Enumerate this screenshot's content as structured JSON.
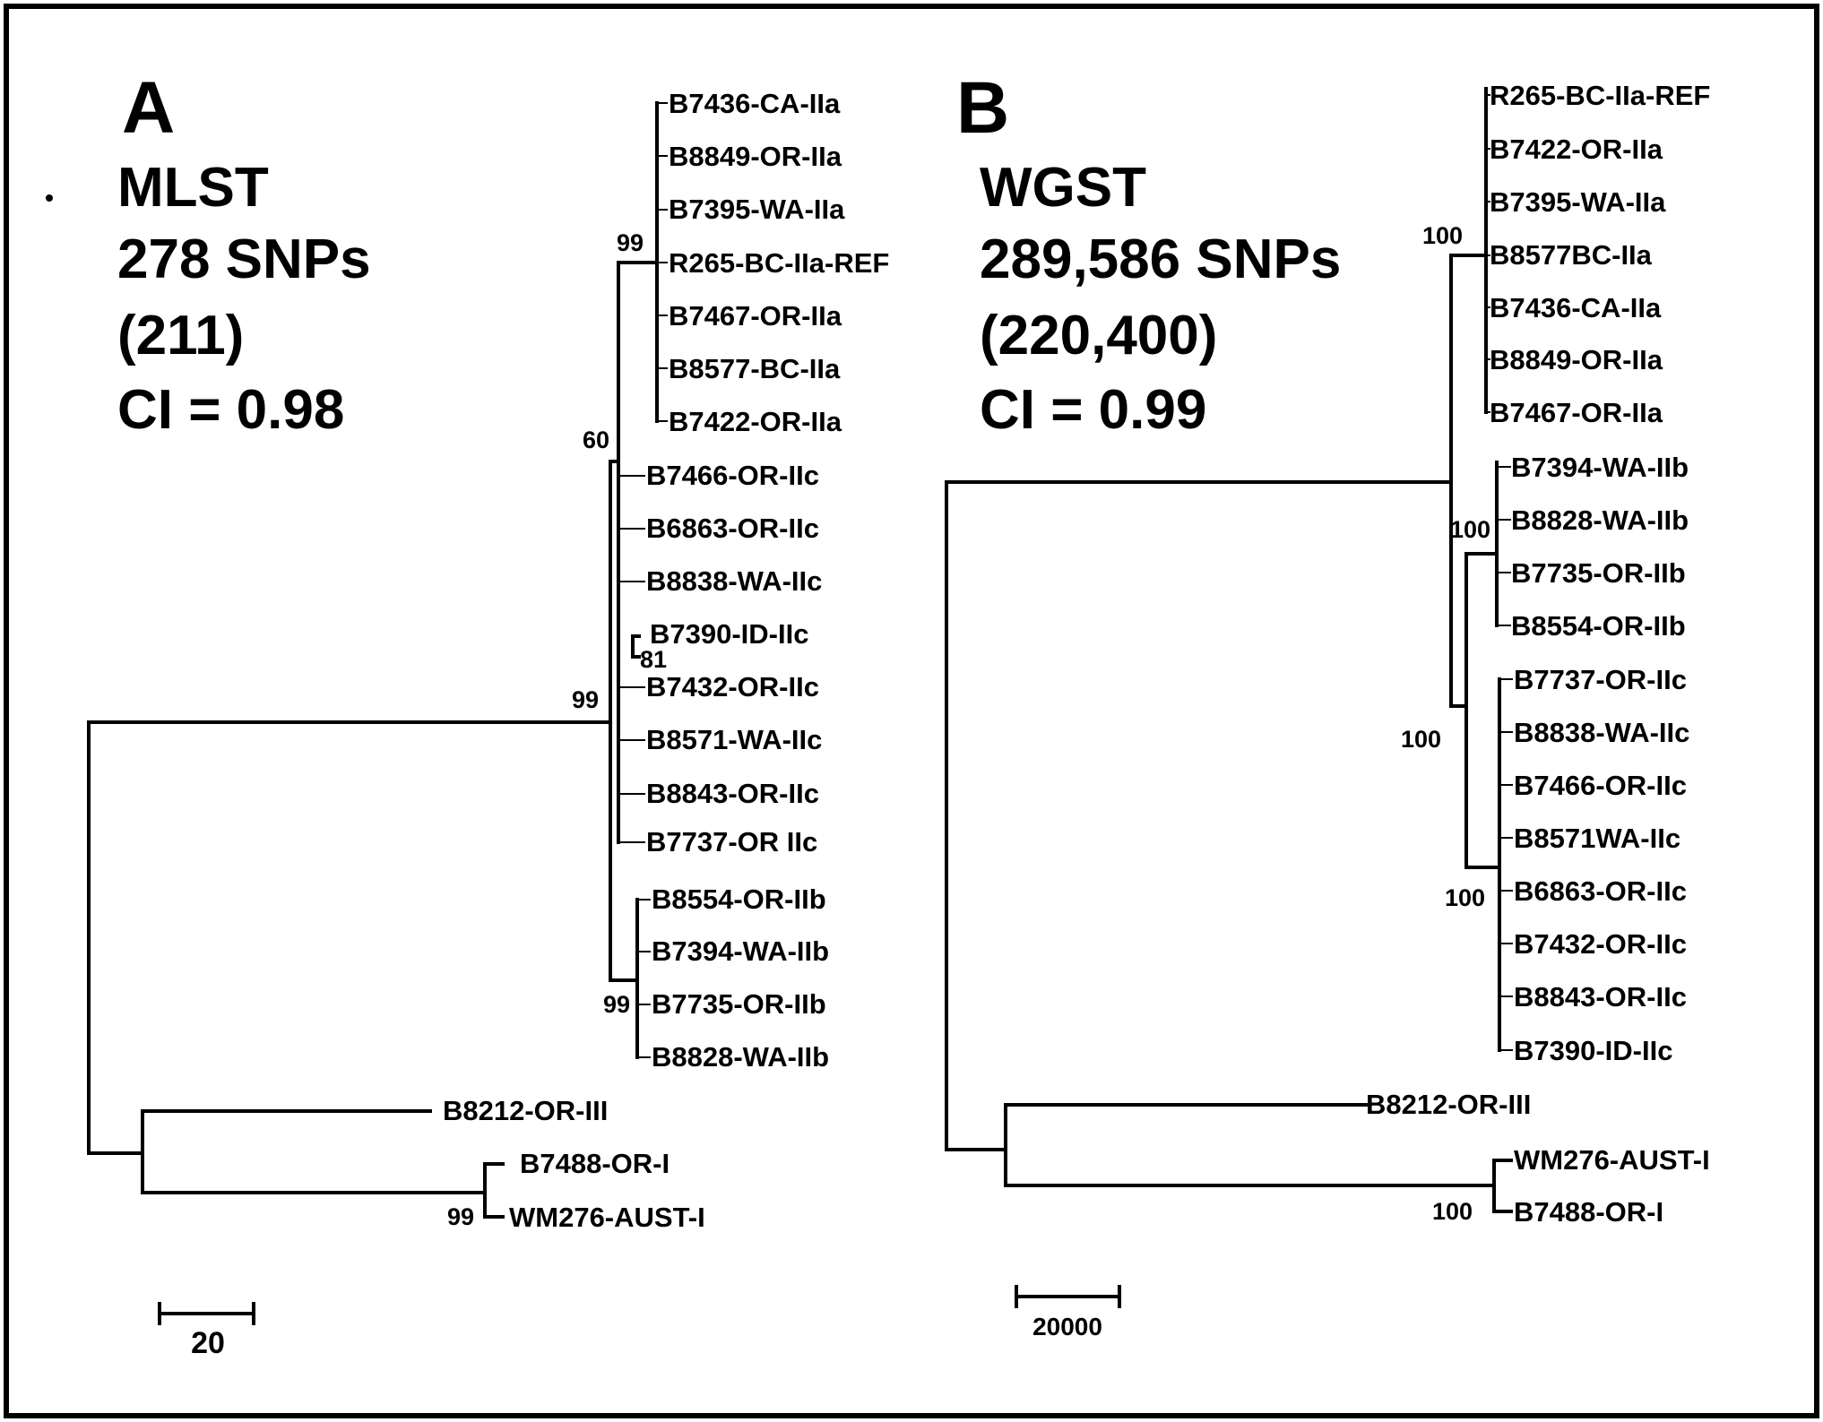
{
  "panels": {
    "A": {
      "letter": "A",
      "method": "MLST",
      "snps": "278 SNPs",
      "informative": "(211)",
      "ci": "CI = 0.98",
      "scale_label": "20",
      "leaves": [
        "B7436-CA-IIa",
        "B8849-OR-IIa",
        "B7395-WA-IIa",
        "R265-BC-IIa-REF",
        "B7467-OR-IIa",
        "B8577-BC-IIa",
        "B7422-OR-IIa",
        "B7466-OR-IIc",
        "B6863-OR-IIc",
        "B8838-WA-IIc",
        "B7390-ID-IIc",
        "B7432-OR-IIc",
        "B8571-WA-IIc",
        "B8843-OR-IIc",
        "B7737-OR IIc",
        "B8554-OR-IIb",
        "B7394-WA-IIb",
        "B7735-OR-IIb",
        "B8828-WA-IIb",
        "B8212-OR-III",
        "B7488-OR-I",
        "WM276-AUST-I"
      ],
      "bootstrap": [
        "99",
        "60",
        "81",
        "99",
        "99",
        "99"
      ]
    },
    "B": {
      "letter": "B",
      "method": "WGST",
      "snps": "289,586 SNPs",
      "informative": "(220,400)",
      "ci": "CI = 0.99",
      "scale_label": "20000",
      "leaves": [
        "R265-BC-IIa-REF",
        "B7422-OR-IIa",
        "B7395-WA-IIa",
        "B8577BC-IIa",
        "B7436-CA-IIa",
        "B8849-OR-IIa",
        "B7467-OR-IIa",
        "B7394-WA-IIb",
        "B8828-WA-IIb",
        "B7735-OR-IIb",
        "B8554-OR-IIb",
        "B7737-OR-IIc",
        "B8838-WA-IIc",
        "B7466-OR-IIc",
        "B8571WA-IIc",
        "B6863-OR-IIc",
        "B7432-OR-IIc",
        "B8843-OR-IIc",
        "B7390-ID-IIc",
        "B8212-OR-III",
        "WM276-AUST-I",
        "B7488-OR-I"
      ],
      "bootstrap": [
        "100",
        "100",
        "100",
        "100",
        "100"
      ]
    }
  }
}
